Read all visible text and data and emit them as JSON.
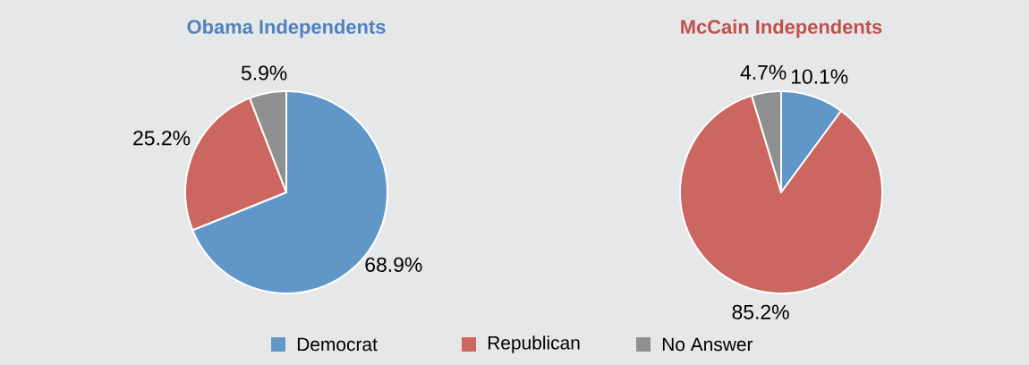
{
  "chart_data": [
    {
      "type": "pie",
      "title": "Obama Independents",
      "categories": [
        "Democrat",
        "Republican",
        "No Answer"
      ],
      "values": [
        68.9,
        25.2,
        5.9
      ],
      "colors": [
        "#6097c8",
        "#cc6660",
        "#8f8f8f"
      ],
      "value_labels": [
        "68.9%",
        "25.2%",
        "5.9%"
      ],
      "legend": "bottom"
    },
    {
      "type": "pie",
      "title": "McCain Independents",
      "categories": [
        null,
        null,
        null
      ],
      "values": [
        10.1,
        85.2,
        4.7
      ],
      "colors": [
        "#6097c8",
        "#cc6660",
        "#8f8f8f"
      ],
      "value_labels": [
        "10.1%",
        "85.2%",
        "4.7%"
      ]
    }
  ]
}
